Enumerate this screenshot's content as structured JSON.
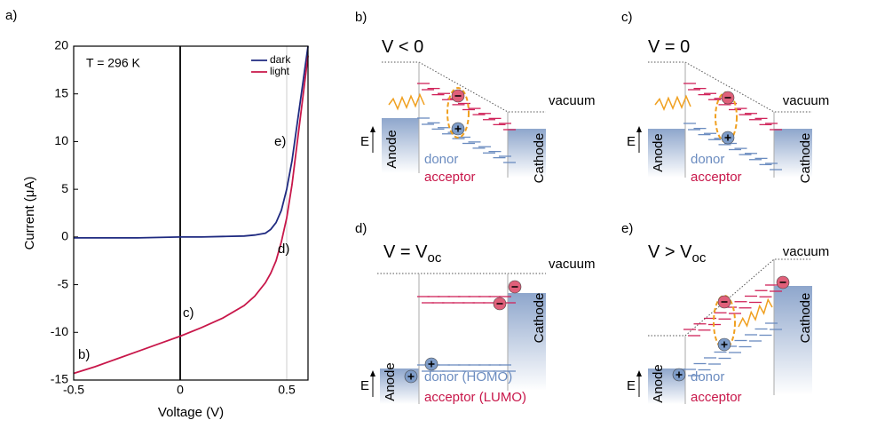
{
  "chart_data": {
    "type": "line",
    "panel_label": "a)",
    "xlabel": "Voltage (V)",
    "ylabel": "Current (μA)",
    "annotation": "T = 296 K",
    "markers": [
      "b)",
      "c)",
      "d)",
      "e)"
    ],
    "x": [
      -0.5,
      -0.4,
      -0.3,
      -0.2,
      -0.1,
      0,
      0.1,
      0.2,
      0.3,
      0.35,
      0.4,
      0.425,
      0.45,
      0.475,
      0.5,
      0.525,
      0.55,
      0.575,
      0.6
    ],
    "series": [
      {
        "name": "dark",
        "color": "#1f2a80",
        "values": [
          -0.1,
          -0.1,
          -0.1,
          -0.1,
          -0.05,
          0,
          0,
          0.05,
          0.1,
          0.2,
          0.4,
          0.8,
          1.5,
          2.8,
          5,
          8,
          12,
          16,
          20
        ]
      },
      {
        "name": "light",
        "color": "#c8174a",
        "values": [
          -14.3,
          -13.6,
          -12.8,
          -12,
          -11.2,
          -10.4,
          -9.5,
          -8.5,
          -7.2,
          -6.2,
          -4.8,
          -3.8,
          -2.5,
          -0.5,
          2,
          5.5,
          10,
          14.5,
          19
        ]
      }
    ],
    "xlim": [
      -0.5,
      0.6
    ],
    "xticks": [
      -0.5,
      0,
      0.5
    ],
    "ylim": [
      -15,
      20
    ],
    "yticks": [
      -15,
      -10,
      -5,
      0,
      5,
      10,
      15,
      20
    ],
    "legend": "upper right"
  },
  "panels": [
    {
      "label": "b)",
      "title": "V < 0",
      "vacuum": "vacuum",
      "energy": "E",
      "anode": "Anode",
      "cathode": "Cathode",
      "donor": "donor",
      "acceptor": "acceptor"
    },
    {
      "label": "c)",
      "title": "V = 0",
      "vacuum": "vacuum",
      "energy": "E",
      "anode": "Anode",
      "cathode": "Cathode",
      "donor": "donor",
      "acceptor": "acceptor"
    },
    {
      "label": "d)",
      "title": "V = V",
      "title_sub": "oc",
      "vacuum": "vacuum",
      "energy": "E",
      "anode": "Anode",
      "cathode": "Cathode",
      "donor": "donor (HOMO)",
      "acceptor": "acceptor (LUMO)"
    },
    {
      "label": "e)",
      "title": "V > V",
      "title_sub": "oc",
      "vacuum": "vacuum",
      "energy": "E",
      "anode": "Anode",
      "cathode": "Cathode",
      "donor": "donor",
      "acceptor": "acceptor"
    }
  ]
}
